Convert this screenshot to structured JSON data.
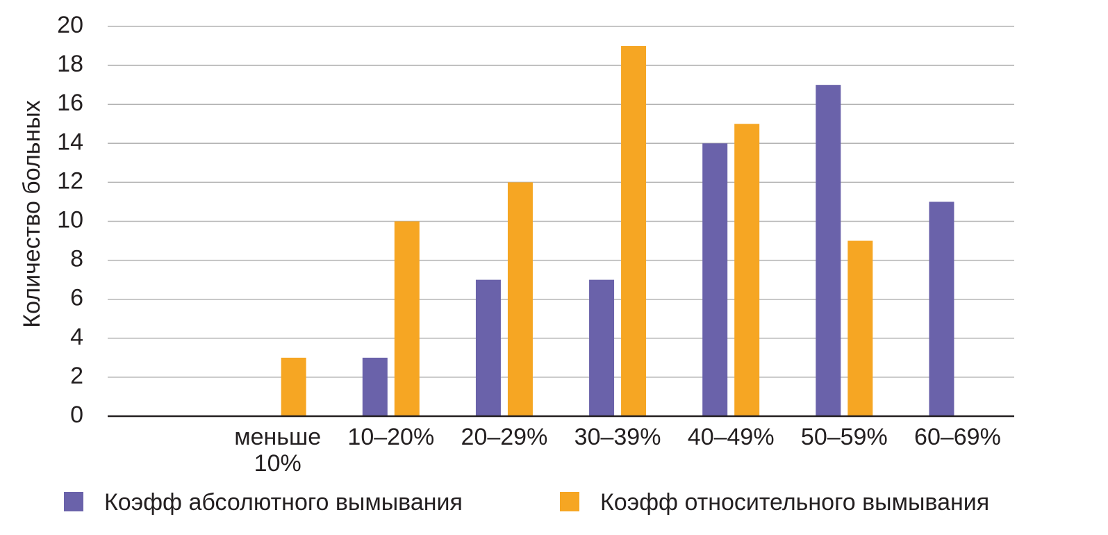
{
  "chart_data": {
    "type": "bar",
    "title": "",
    "xlabel": "",
    "ylabel": "Количество больных",
    "ylim": [
      0,
      20
    ],
    "yticks": [
      0,
      2,
      4,
      6,
      8,
      10,
      12,
      14,
      16,
      18,
      20
    ],
    "grid": true,
    "legend_position": "bottom",
    "categories": [
      "",
      [
        "меньше",
        "10%"
      ],
      "10–20%",
      "20–29%",
      "30–39%",
      "40–49%",
      "50–59%",
      "60–69%"
    ],
    "series": [
      {
        "name": "Коэфф абсолютного вымывания",
        "color": "#6a62aa",
        "values": [
          null,
          null,
          3,
          7,
          7,
          14,
          17,
          11
        ]
      },
      {
        "name": "Коэфф относительного вымывания",
        "color": "#f6a623",
        "values": [
          null,
          3,
          10,
          12,
          19,
          15,
          9,
          null
        ]
      }
    ]
  }
}
